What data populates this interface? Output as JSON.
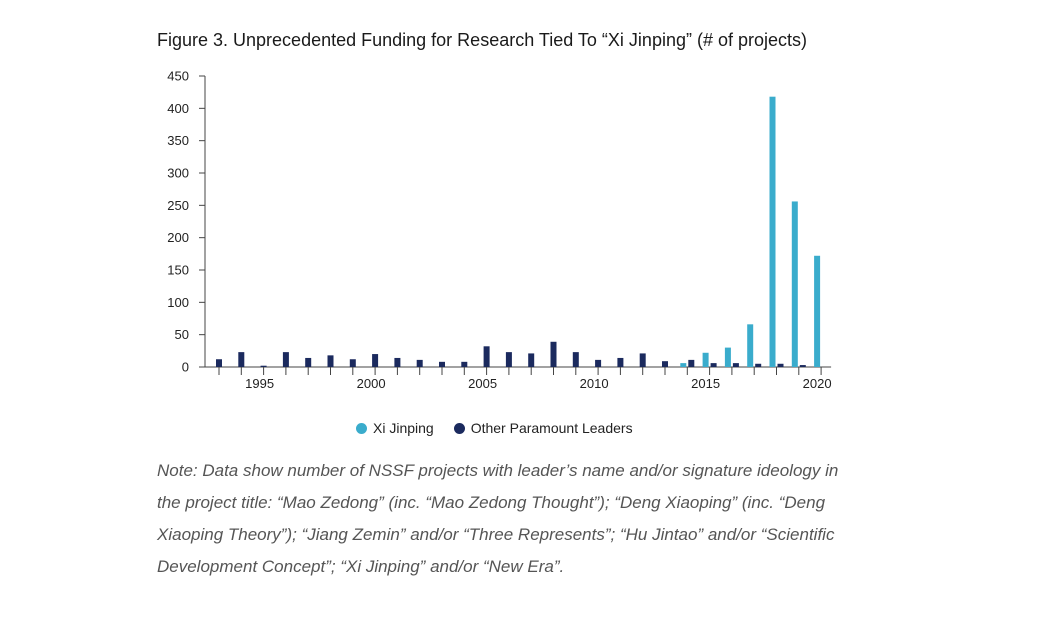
{
  "title": "Figure 3. Unprecedented Funding for Research Tied To “Xi Jinping” (# of projects)",
  "chart_data": {
    "type": "bar",
    "x": [
      1993,
      1994,
      1995,
      1996,
      1997,
      1998,
      1999,
      2000,
      2001,
      2002,
      2003,
      2004,
      2005,
      2006,
      2007,
      2008,
      2009,
      2010,
      2011,
      2012,
      2013,
      2014,
      2015,
      2016,
      2017,
      2018,
      2019,
      2020
    ],
    "series": [
      {
        "name": "Xi Jinping",
        "color": "#3aaccc",
        "values": [
          0,
          0,
          0,
          0,
          0,
          0,
          0,
          0,
          0,
          0,
          0,
          0,
          0,
          0,
          0,
          0,
          0,
          0,
          0,
          0,
          0,
          6,
          22,
          30,
          66,
          418,
          256,
          172
        ]
      },
      {
        "name": "Other Paramount Leaders",
        "color": "#1b2a5e",
        "values": [
          12,
          23,
          2,
          23,
          14,
          18,
          12,
          20,
          14,
          11,
          8,
          8,
          32,
          23,
          21,
          39,
          23,
          11,
          14,
          21,
          9,
          11,
          6,
          6,
          5,
          5,
          3,
          0
        ]
      }
    ],
    "ylim": [
      0,
      450
    ],
    "yticks": [
      0,
      50,
      100,
      150,
      200,
      250,
      300,
      350,
      400,
      450
    ],
    "xticks": [
      1995,
      2000,
      2005,
      2010,
      2015,
      2020
    ],
    "xlabel": "",
    "ylabel": "",
    "legend_position": "bottom"
  },
  "legend": {
    "items": [
      {
        "label": "Xi Jinping",
        "color": "#3aaccc"
      },
      {
        "label": "Other Paramount Leaders",
        "color": "#1b2a5e"
      }
    ]
  },
  "note": "Note: Data show number of NSSF projects with leader’s name and/or signature ideology in the project title: “Mao Zedong” (inc. “Mao Zedong Thought”); “Deng Xiaoping” (inc. “Deng Xiaoping Theory”); “Jiang Zemin” and/or “Three Represents”; “Hu Jintao” and/or “Scientific Development Concept”; “Xi Jinping” and/or “New Era”."
}
